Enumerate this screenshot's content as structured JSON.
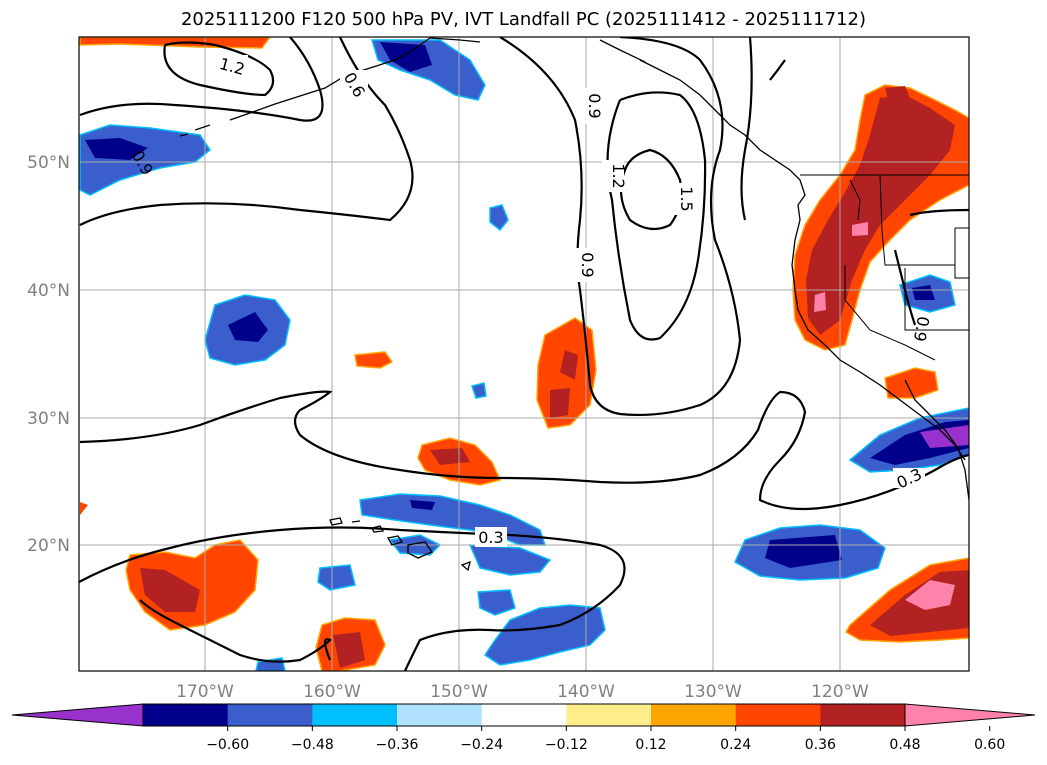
{
  "title": "2025111200 F120 500 hPa PV, IVT Landfall PC (2025111412 - 2025111712)",
  "lat_labels": [
    "50°N",
    "40°N",
    "30°N",
    "20°N"
  ],
  "lon_labels": [
    "170°W",
    "160°W",
    "150°W",
    "140°W",
    "130°W",
    "120°W"
  ],
  "contour_labels": [
    "1.2",
    "0.6",
    "0.9",
    "0.9",
    "0.9",
    "1.2",
    "1.5",
    "0.6",
    "0.9",
    "0.3",
    "0.3"
  ],
  "colorbar": {
    "colors": [
      "#9932cc",
      "#00008b",
      "#3a5fcd",
      "#00bfff",
      "#b0e2ff",
      "#ffffff",
      "#ffec8b",
      "#ffa500",
      "#ff4500",
      "#b22222",
      "#ff82ab"
    ],
    "ticks": [
      "−0.60",
      "−0.48",
      "−0.36",
      "−0.24",
      "−0.12",
      "0.12",
      "0.24",
      "0.36",
      "0.48",
      "0.60"
    ]
  }
}
